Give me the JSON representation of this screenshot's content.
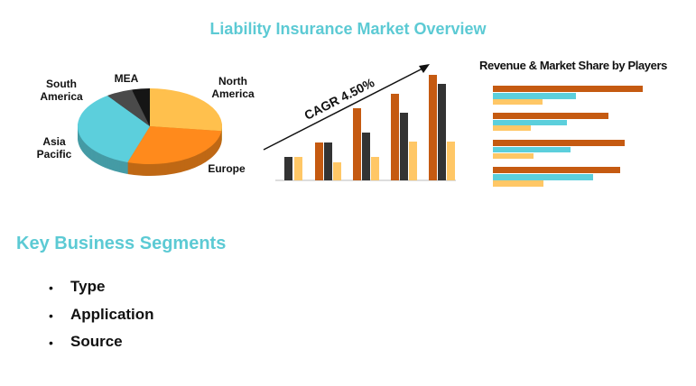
{
  "header": {
    "title": "Liability Insurance Market Overview"
  },
  "chart_data": {
    "type": "pie",
    "categories": [
      "North America",
      "Europe",
      "Asia Pacific",
      "South America",
      "MEA"
    ],
    "values": [
      27,
      28,
      35,
      6,
      4
    ],
    "colors": [
      "#ffc04d",
      "#ff8a1c",
      "#5ccfdc",
      "#4a4a4a",
      "#151515"
    ]
  },
  "growth_label": "CAGR 4.50%",
  "players_title": "Revenue & Market Share by Players",
  "segments": {
    "title": "Key Business Segments",
    "items": [
      "Type",
      "Application",
      "Source"
    ]
  }
}
